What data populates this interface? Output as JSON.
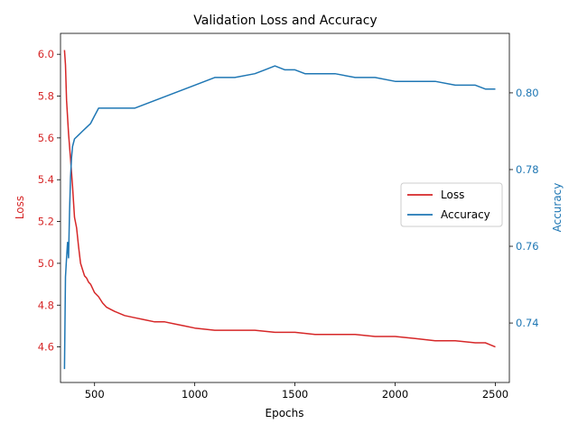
{
  "chart_data": {
    "type": "line",
    "title": "Validation Loss and Accuracy",
    "xlabel": "Epochs",
    "ylabel_left": "Loss",
    "ylabel_right": "Accuracy",
    "xlim": [
      330,
      2570
    ],
    "ylim_left": [
      4.43,
      6.1
    ],
    "ylim_right": [
      0.7245,
      0.8155
    ],
    "xticks": [
      500,
      1000,
      1500,
      2000,
      2500
    ],
    "yticks_left": [
      4.6,
      4.8,
      5.0,
      5.2,
      5.4,
      5.6,
      5.8,
      6.0
    ],
    "yticks_right": [
      0.74,
      0.76,
      0.78,
      0.8
    ],
    "xtick_labels": [
      "500",
      "1000",
      "1500",
      "2000",
      "2500"
    ],
    "ytick_labels_left": [
      "4.6",
      "4.8",
      "5.0",
      "5.2",
      "5.4",
      "5.6",
      "5.8",
      "6.0"
    ],
    "ytick_labels_right": [
      "0.74",
      "0.76",
      "0.78",
      "0.80"
    ],
    "grid": false,
    "legend_position": "center-right",
    "series": [
      {
        "name": "Loss",
        "axis": "left",
        "color": "#d62728",
        "x": [
          350,
          355,
          360,
          365,
          370,
          380,
          390,
          400,
          410,
          420,
          430,
          440,
          450,
          460,
          470,
          480,
          490,
          500,
          520,
          540,
          560,
          580,
          600,
          650,
          700,
          750,
          800,
          850,
          900,
          950,
          1000,
          1100,
          1200,
          1300,
          1400,
          1500,
          1600,
          1700,
          1800,
          1900,
          2000,
          2100,
          2200,
          2300,
          2400,
          2450,
          2500
        ],
        "values": [
          6.02,
          5.95,
          5.78,
          5.7,
          5.62,
          5.5,
          5.37,
          5.22,
          5.17,
          5.08,
          5.0,
          4.97,
          4.94,
          4.93,
          4.91,
          4.9,
          4.88,
          4.86,
          4.84,
          4.81,
          4.79,
          4.78,
          4.77,
          4.75,
          4.74,
          4.73,
          4.72,
          4.72,
          4.71,
          4.7,
          4.69,
          4.68,
          4.68,
          4.68,
          4.67,
          4.67,
          4.66,
          4.66,
          4.66,
          4.65,
          4.65,
          4.64,
          4.63,
          4.63,
          4.62,
          4.62,
          4.6
        ]
      },
      {
        "name": "Accuracy",
        "axis": "right",
        "color": "#1f77b4",
        "x": [
          350,
          355,
          360,
          365,
          370,
          375,
          380,
          385,
          390,
          400,
          420,
          440,
          460,
          480,
          500,
          520,
          550,
          600,
          650,
          700,
          750,
          800,
          900,
          1000,
          1100,
          1200,
          1300,
          1350,
          1400,
          1450,
          1500,
          1550,
          1600,
          1700,
          1800,
          1900,
          2000,
          2100,
          2200,
          2300,
          2400,
          2450,
          2500
        ],
        "values": [
          0.728,
          0.752,
          0.757,
          0.761,
          0.757,
          0.769,
          0.778,
          0.783,
          0.786,
          0.788,
          0.789,
          0.79,
          0.791,
          0.792,
          0.794,
          0.796,
          0.796,
          0.796,
          0.796,
          0.796,
          0.797,
          0.798,
          0.8,
          0.802,
          0.804,
          0.804,
          0.805,
          0.806,
          0.807,
          0.806,
          0.806,
          0.805,
          0.805,
          0.805,
          0.804,
          0.804,
          0.803,
          0.803,
          0.803,
          0.802,
          0.802,
          0.801,
          0.801
        ]
      }
    ]
  }
}
